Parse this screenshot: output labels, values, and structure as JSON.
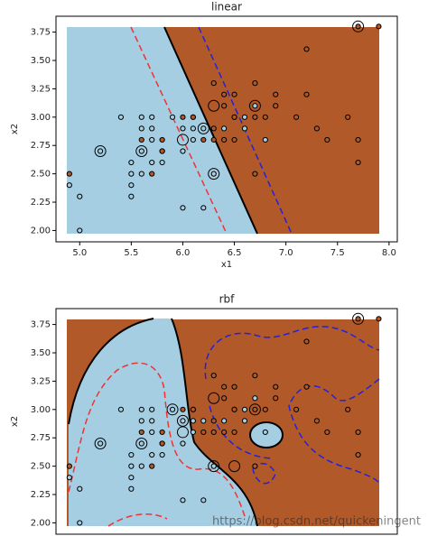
{
  "chart_data": [
    {
      "type": "scatter",
      "title": "linear",
      "x_label": "x1",
      "y_label": "x2",
      "xlim": [
        4.77,
        8.08
      ],
      "ylim": [
        1.9,
        3.89
      ],
      "xticks": [
        {
          "value": 5,
          "label": "5.0"
        },
        {
          "value": 5.5,
          "label": "5.5"
        },
        {
          "value": 6,
          "label": "6.0"
        },
        {
          "value": 6.5,
          "label": "6.5"
        },
        {
          "value": 7,
          "label": "7.0"
        },
        {
          "value": 7.5,
          "label": "7.5"
        },
        {
          "value": 8,
          "label": "8.0"
        }
      ],
      "yticks": [
        {
          "value": 2,
          "label": "2.00"
        },
        {
          "value": 2.25,
          "label": "2.25"
        },
        {
          "value": 2.5,
          "label": "2.50"
        },
        {
          "value": 2.75,
          "label": "2.75"
        },
        {
          "value": 3,
          "label": "3.00"
        },
        {
          "value": 3.25,
          "label": "3.25"
        },
        {
          "value": 3.5,
          "label": "3.50"
        },
        {
          "value": 3.75,
          "label": "3.75"
        }
      ],
      "series": [
        {
          "color": "#a6cee3",
          "marker": "dot",
          "x": [
            4.9,
            5.0,
            5.0,
            5.2,
            5.4,
            5.5,
            5.5,
            5.5,
            5.5,
            5.6,
            5.6,
            5.6,
            5.7,
            5.7,
            5.7,
            5.8,
            5.8,
            5.9,
            6.0,
            6.0,
            6.0,
            6.1,
            6.1,
            6.2,
            6.2,
            6.3,
            6.4,
            6.6,
            6.6,
            6.7,
            6.8,
            5.6,
            5.7,
            6.1
          ],
          "values": [
            2.4,
            2.3,
            2.0,
            2.7,
            3.0,
            2.4,
            2.5,
            2.6,
            2.3,
            2.9,
            3.0,
            2.5,
            2.6,
            2.8,
            3.0,
            2.7,
            2.6,
            3.0,
            2.2,
            2.7,
            2.9,
            2.8,
            2.9,
            2.2,
            2.9,
            2.5,
            2.9,
            2.9,
            3.0,
            3.1,
            2.8,
            2.7,
            2.9,
            3.0
          ]
        },
        {
          "color": "#b15928",
          "marker": "dot",
          "x": [
            4.9,
            5.6,
            5.7,
            5.8,
            5.8,
            6.0,
            6.1,
            6.2,
            6.3,
            6.3,
            6.4,
            6.4,
            6.5,
            6.5,
            6.5,
            6.7,
            6.7,
            6.7,
            6.8,
            6.9,
            6.9,
            7.1,
            7.2,
            7.2,
            7.3,
            7.4,
            7.6,
            7.7,
            7.7,
            7.7,
            7.9,
            6.3,
            6.4,
            6.5
          ],
          "values": [
            2.5,
            2.8,
            2.5,
            2.8,
            2.7,
            3.0,
            3.0,
            2.8,
            2.8,
            3.3,
            3.2,
            2.8,
            3.0,
            3.2,
            2.8,
            3.0,
            3.3,
            2.5,
            3.0,
            3.1,
            3.2,
            3.0,
            3.6,
            3.2,
            2.9,
            2.8,
            3.0,
            3.8,
            2.6,
            2.8,
            3.8,
            2.9,
            3.1,
            3.0
          ]
        },
        {
          "color": "#000000",
          "marker": "ring",
          "x": [
            7.7,
            5.2,
            5.6,
            6.0,
            6.3,
            6.7,
            6.3,
            6.2
          ],
          "values": [
            3.8,
            2.7,
            2.7,
            2.8,
            3.1,
            3.1,
            2.5,
            2.9
          ]
        }
      ]
    },
    {
      "type": "scatter",
      "title": "rbf",
      "y_label": "x2",
      "xlim": [
        4.77,
        8.08
      ],
      "ylim": [
        1.9,
        3.89
      ],
      "yticks": [
        {
          "value": 2,
          "label": "2.00"
        },
        {
          "value": 2.25,
          "label": "2.25"
        },
        {
          "value": 2.5,
          "label": "2.50"
        },
        {
          "value": 2.75,
          "label": "2.75"
        },
        {
          "value": 3,
          "label": "3.00"
        },
        {
          "value": 3.25,
          "label": "3.25"
        },
        {
          "value": 3.5,
          "label": "3.50"
        },
        {
          "value": 3.75,
          "label": "3.75"
        }
      ],
      "series": [
        {
          "color": "#a6cee3",
          "marker": "dot",
          "x": [
            4.9,
            5.0,
            5.0,
            5.2,
            5.4,
            5.5,
            5.5,
            5.5,
            5.5,
            5.6,
            5.6,
            5.6,
            5.7,
            5.7,
            5.7,
            5.8,
            5.8,
            5.9,
            6.0,
            6.0,
            6.0,
            6.1,
            6.1,
            6.2,
            6.2,
            6.3,
            6.4,
            6.6,
            6.6,
            6.7,
            6.8,
            5.6,
            5.7,
            6.1
          ],
          "values": [
            2.4,
            2.3,
            2.0,
            2.7,
            3.0,
            2.4,
            2.5,
            2.6,
            2.3,
            2.9,
            3.0,
            2.5,
            2.6,
            2.8,
            3.0,
            2.7,
            2.6,
            3.0,
            2.2,
            2.7,
            2.9,
            2.8,
            2.9,
            2.2,
            2.9,
            2.5,
            2.9,
            2.9,
            3.0,
            3.1,
            2.8,
            2.7,
            2.9,
            3.0
          ]
        },
        {
          "color": "#b15928",
          "marker": "dot",
          "x": [
            4.9,
            5.6,
            5.7,
            5.8,
            5.8,
            6.0,
            6.1,
            6.2,
            6.3,
            6.3,
            6.4,
            6.4,
            6.5,
            6.5,
            6.5,
            6.7,
            6.7,
            6.7,
            6.8,
            6.9,
            6.9,
            7.1,
            7.2,
            7.2,
            7.3,
            7.4,
            7.6,
            7.7,
            7.7,
            7.7,
            7.9,
            6.3,
            6.4,
            6.5
          ],
          "values": [
            2.5,
            2.8,
            2.5,
            2.8,
            2.7,
            3.0,
            3.0,
            2.8,
            2.8,
            3.3,
            3.2,
            2.8,
            3.0,
            3.2,
            2.8,
            3.0,
            3.3,
            2.5,
            3.0,
            3.1,
            3.2,
            3.0,
            3.6,
            3.2,
            2.9,
            2.8,
            3.0,
            3.8,
            2.6,
            2.8,
            3.8,
            2.9,
            3.1,
            3.0
          ]
        },
        {
          "color": "#000000",
          "marker": "ring",
          "x": [
            7.7,
            5.2,
            5.6,
            6.0,
            6.3,
            6.7,
            6.3,
            6.0,
            5.9,
            6.5
          ],
          "values": [
            3.8,
            2.7,
            2.7,
            2.8,
            3.1,
            3.0,
            2.5,
            2.9,
            3.0,
            2.5
          ]
        }
      ],
      "watermark": "https://blog.csdn.net/quickeningent"
    }
  ]
}
